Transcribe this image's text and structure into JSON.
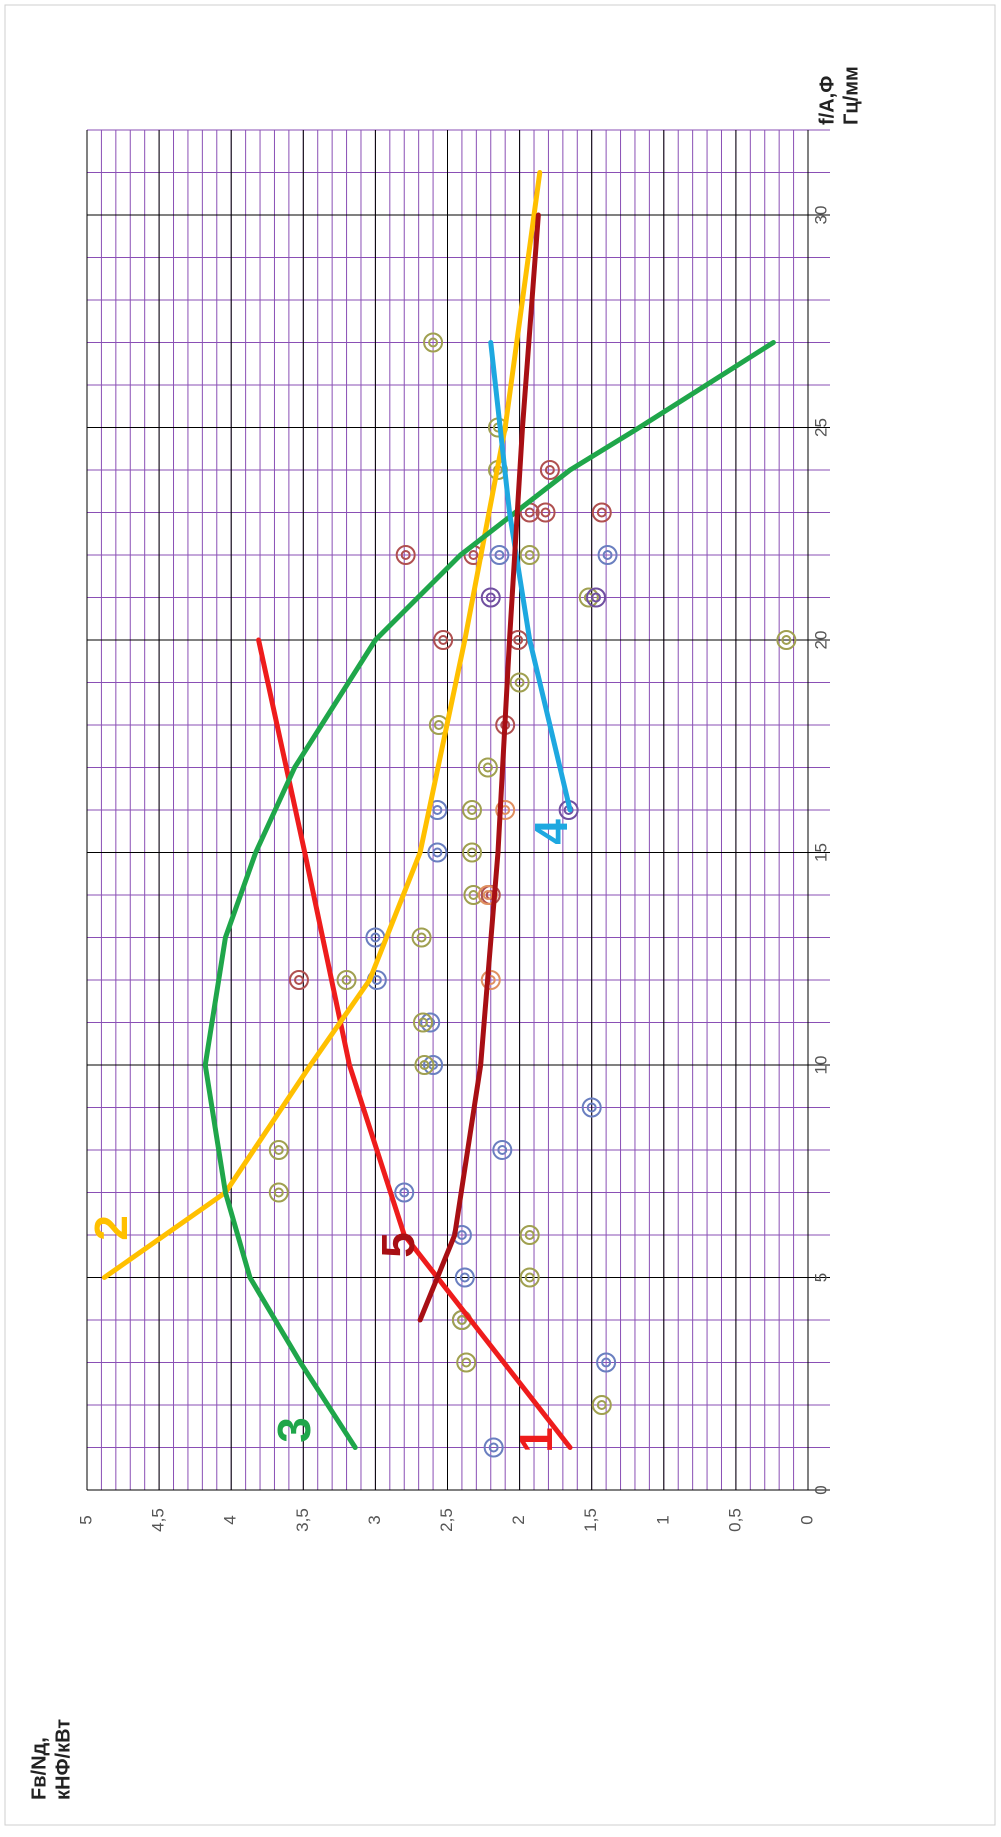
{
  "chart_data": {
    "type": "line",
    "y_label_line1": "Fв/Nд,",
    "y_label_line2": "кНФ/кВт",
    "x_label_line1": "f/A,Ф",
    "x_label_line2": "Гц/мм",
    "xlim": [
      0,
      32
    ],
    "ylim": [
      0,
      5
    ],
    "xticks": [
      0,
      5,
      10,
      15,
      20,
      25,
      30
    ],
    "yticks": [
      0,
      {
        "value": 0.5,
        "label": "0,5"
      },
      1,
      {
        "value": 1.5,
        "label": "1,5"
      },
      2,
      {
        "value": 2.5,
        "label": "2,5"
      },
      3,
      {
        "value": 3.5,
        "label": "3,5"
      },
      4,
      {
        "value": 4.5,
        "label": "4,5"
      },
      5
    ],
    "grid": true,
    "minor_grid": {
      "x": 1,
      "y": 0.1
    },
    "series": [
      {
        "name": "1",
        "color": "#ee1c1c",
        "x": [
          1,
          4,
          6,
          10,
          15,
          20
        ],
        "values": [
          1.65,
          2.34,
          2.8,
          3.18,
          3.49,
          3.81
        ]
      },
      {
        "name": "2",
        "color": "#ffc000",
        "x": [
          5,
          7,
          10,
          12,
          15,
          20,
          25,
          31
        ],
        "values": [
          4.88,
          4.04,
          3.45,
          3.04,
          2.69,
          2.38,
          2.1,
          1.86
        ]
      },
      {
        "name": "3",
        "color": "#1fa64a",
        "x": [
          1,
          3,
          5,
          7,
          10,
          13,
          15,
          17,
          20,
          22,
          24,
          25,
          27
        ],
        "values": [
          3.14,
          3.52,
          3.87,
          4.04,
          4.18,
          4.04,
          3.83,
          3.56,
          3.0,
          2.41,
          1.65,
          1.17,
          0.24
        ]
      },
      {
        "name": "4",
        "color": "#1ea8e0",
        "x": [
          16,
          20,
          23,
          27
        ],
        "values": [
          1.65,
          1.93,
          2.07,
          2.2
        ]
      },
      {
        "name": "5",
        "color": "#a80f14",
        "x": [
          4,
          6,
          10,
          15,
          20,
          25,
          30
        ],
        "values": [
          2.69,
          2.45,
          2.27,
          2.15,
          2.07,
          1.98,
          1.87
        ]
      }
    ],
    "points": {
      "x": [
        1,
        3,
        4,
        5,
        6,
        7,
        8,
        9,
        10,
        11,
        12,
        13,
        15,
        16,
        22,
        22,
        2,
        3,
        4,
        5,
        6,
        7,
        8,
        10,
        11,
        12,
        13,
        14,
        15,
        16,
        17,
        18,
        19,
        20,
        21,
        22,
        24,
        25,
        27,
        12,
        14,
        18,
        20,
        20,
        22,
        22,
        23,
        23,
        23,
        24,
        16,
        21,
        21,
        12,
        14,
        16
      ],
      "values": [
        2.18,
        1.4,
        2.4,
        2.38,
        2.4,
        2.8,
        2.12,
        1.5,
        2.6,
        2.62,
        2.99,
        3.0,
        2.57,
        2.57,
        2.14,
        1.39,
        1.43,
        2.37,
        2.4,
        1.93,
        1.93,
        3.67,
        3.67,
        2.66,
        2.67,
        3.2,
        2.68,
        2.32,
        2.33,
        2.33,
        2.22,
        2.56,
        2.0,
        0.15,
        1.52,
        1.93,
        2.15,
        2.15,
        2.6,
        3.53,
        2.2,
        2.1,
        2.01,
        2.53,
        2.79,
        2.32,
        1.82,
        1.93,
        1.43,
        1.79,
        1.66,
        2.2,
        1.47,
        2.2,
        2.22,
        2.1
      ],
      "colors": [
        "#6a7fc0",
        "#6a7fc0",
        "#6a7fc0",
        "#6a7fc0",
        "#6a7fc0",
        "#6a7fc0",
        "#6a7fc0",
        "#6a7fc0",
        "#6a7fc0",
        "#6a7fc0",
        "#6a7fc0",
        "#6a7fc0",
        "#6a7fc0",
        "#6a7fc0",
        "#6a7fc0",
        "#6a7fc0",
        "#a0a050",
        "#a0a050",
        "#a0a050",
        "#a0a050",
        "#a0a050",
        "#a0a050",
        "#a0a050",
        "#a0a050",
        "#a0a050",
        "#a0a050",
        "#a0a050",
        "#a0a050",
        "#a0a050",
        "#a0a050",
        "#a0a050",
        "#a0a050",
        "#a0a050",
        "#a0a050",
        "#a0a050",
        "#a0a050",
        "#a0a050",
        "#a0a050",
        "#a0a050",
        "#b05050",
        "#b05050",
        "#b05050",
        "#b05050",
        "#b05050",
        "#b05050",
        "#b05050",
        "#b05050",
        "#b05050",
        "#b05050",
        "#b05050",
        "#7050a0",
        "#7050a0",
        "#7050a0",
        "#e09060",
        "#e09060",
        "#e09060"
      ]
    }
  }
}
